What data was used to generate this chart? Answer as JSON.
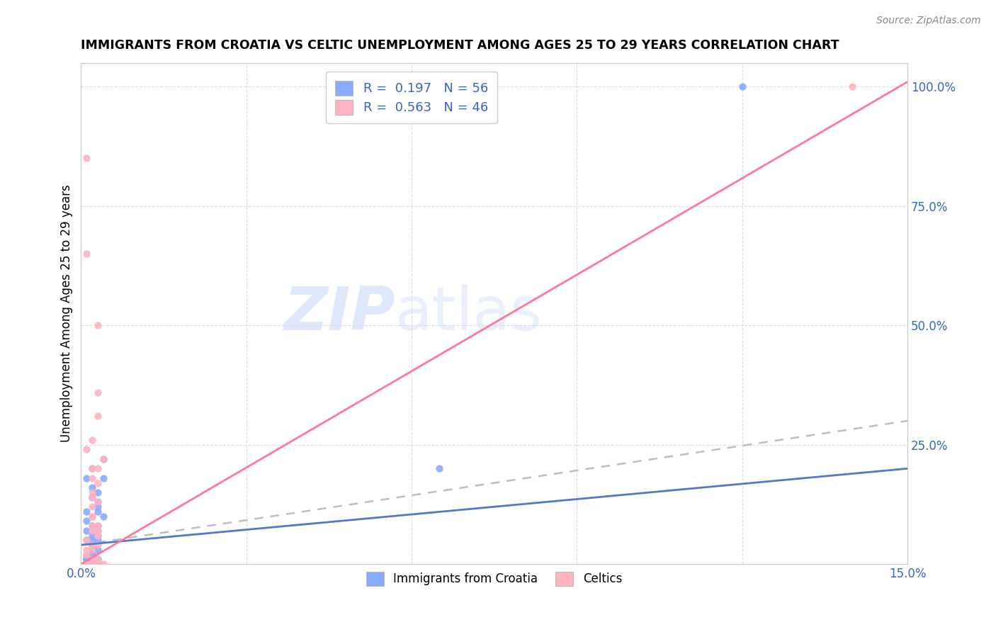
{
  "title": "IMMIGRANTS FROM CROATIA VS CELTIC UNEMPLOYMENT AMONG AGES 25 TO 29 YEARS CORRELATION CHART",
  "source": "Source: ZipAtlas.com",
  "ylabel_left": "Unemployment Among Ages 25 to 29 years",
  "x_ticks": [
    0.0,
    0.03,
    0.06,
    0.09,
    0.12,
    0.15
  ],
  "x_tick_labels": [
    "0.0%",
    "",
    "",
    "",
    "",
    "15.0%"
  ],
  "y_ticks_right": [
    0.0,
    0.25,
    0.5,
    0.75,
    1.0
  ],
  "y_tick_labels_right": [
    "",
    "25.0%",
    "50.0%",
    "75.0%",
    "100.0%"
  ],
  "xlim": [
    0.0,
    0.15
  ],
  "ylim": [
    0.0,
    1.05
  ],
  "color_blue": "#88AAFF",
  "color_pink": "#FFB3C0",
  "color_line_blue": "#5577CC",
  "color_line_pink": "#FF7799",
  "color_dashed": "#BBBBCC",
  "watermark_zip": "ZIP",
  "watermark_atlas": "atlas",
  "croatia_x": [
    0.001,
    0.002,
    0.001,
    0.003,
    0.001,
    0.002,
    0.001,
    0.001,
    0.002,
    0.003,
    0.002,
    0.001,
    0.001,
    0.002,
    0.003,
    0.002,
    0.001,
    0.003,
    0.002,
    0.001,
    0.004,
    0.002,
    0.003,
    0.002,
    0.001,
    0.002,
    0.003,
    0.001,
    0.002,
    0.001,
    0.002,
    0.003,
    0.001,
    0.002,
    0.004,
    0.003,
    0.001,
    0.002,
    0.003,
    0.001,
    0.002,
    0.001,
    0.003,
    0.002,
    0.001,
    0.002,
    0.003,
    0.001,
    0.002,
    0.004,
    0.001,
    0.003,
    0.002,
    0.001,
    0.065,
    0.12
  ],
  "croatia_y": [
    0.0,
    0.0,
    0.01,
    0.0,
    0.02,
    0.01,
    0.0,
    0.0,
    0.05,
    0.03,
    0.02,
    0.01,
    0.07,
    0.04,
    0.06,
    0.03,
    0.0,
    0.08,
    0.02,
    0.05,
    0.1,
    0.04,
    0.13,
    0.07,
    0.01,
    0.16,
    0.11,
    0.09,
    0.14,
    0.0,
    0.2,
    0.07,
    0.18,
    0.03,
    0.22,
    0.12,
    0.0,
    0.0,
    0.01,
    0.0,
    0.02,
    0.0,
    0.05,
    0.03,
    0.0,
    0.08,
    0.15,
    0.0,
    0.06,
    0.18,
    0.11,
    0.0,
    0.02,
    0.0,
    0.2,
    1.0
  ],
  "celtics_x": [
    0.001,
    0.002,
    0.001,
    0.003,
    0.002,
    0.001,
    0.002,
    0.003,
    0.001,
    0.002,
    0.003,
    0.002,
    0.001,
    0.003,
    0.002,
    0.001,
    0.004,
    0.002,
    0.003,
    0.001,
    0.002,
    0.003,
    0.001,
    0.002,
    0.003,
    0.002,
    0.001,
    0.003,
    0.002,
    0.001,
    0.003,
    0.002,
    0.001,
    0.002,
    0.003,
    0.002,
    0.001,
    0.002,
    0.003,
    0.001,
    0.002,
    0.003,
    0.004,
    0.002,
    0.14,
    0.001
  ],
  "celtics_y": [
    0.0,
    0.0,
    0.02,
    0.01,
    0.0,
    0.05,
    0.03,
    0.08,
    0.0,
    0.04,
    0.06,
    0.1,
    0.0,
    0.13,
    0.07,
    0.0,
    0.22,
    0.14,
    0.17,
    0.0,
    0.26,
    0.31,
    0.0,
    0.2,
    0.36,
    0.18,
    0.24,
    0.0,
    0.12,
    0.0,
    0.5,
    0.15,
    0.65,
    0.08,
    0.2,
    0.0,
    0.03,
    0.0,
    0.07,
    0.0,
    0.1,
    0.04,
    0.0,
    0.01,
    1.0,
    0.85
  ],
  "blue_line_x": [
    0.0,
    0.15
  ],
  "blue_line_y": [
    0.04,
    0.2
  ],
  "pink_line_x": [
    0.0,
    0.15
  ],
  "pink_line_y": [
    0.0,
    1.01
  ],
  "dashed_line_x": [
    0.0,
    0.15
  ],
  "dashed_line_y": [
    0.04,
    0.3
  ]
}
